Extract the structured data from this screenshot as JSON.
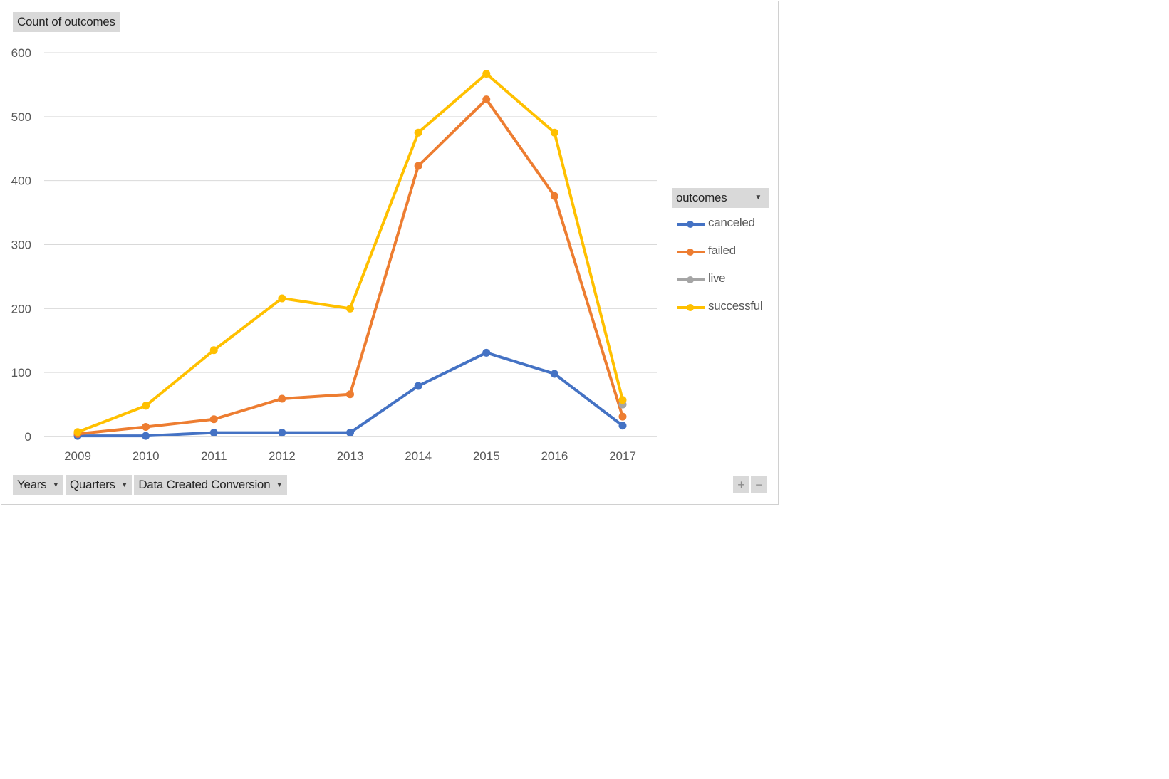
{
  "chart_data": {
    "type": "line",
    "title": "",
    "value_field_label": "Count of outcomes",
    "legend_title": "outcomes",
    "categories": [
      "2009",
      "2010",
      "2011",
      "2012",
      "2013",
      "2014",
      "2015",
      "2016",
      "2017"
    ],
    "ylim": [
      0,
      600
    ],
    "yticks": [
      0,
      100,
      200,
      300,
      400,
      500,
      600
    ],
    "grid": true,
    "legend_position": "right",
    "series": [
      {
        "name": "canceled",
        "color": "#4472c4",
        "values": [
          1,
          1,
          6,
          6,
          6,
          79,
          131,
          98,
          17
        ]
      },
      {
        "name": "failed",
        "color": "#ed7d31",
        "values": [
          4,
          15,
          27,
          59,
          66,
          423,
          527,
          376,
          31
        ]
      },
      {
        "name": "live",
        "color": "#a5a5a5",
        "values": [
          null,
          null,
          null,
          null,
          null,
          null,
          null,
          null,
          50
        ]
      },
      {
        "name": "successful",
        "color": "#ffc000",
        "values": [
          7,
          48,
          135,
          216,
          200,
          475,
          567,
          475,
          57
        ]
      }
    ]
  },
  "axis_fields": [
    {
      "label": "Years"
    },
    {
      "label": "Quarters"
    },
    {
      "label": "Data Created Conversion"
    }
  ],
  "zoom": {
    "plus": "+",
    "minus": "−"
  }
}
